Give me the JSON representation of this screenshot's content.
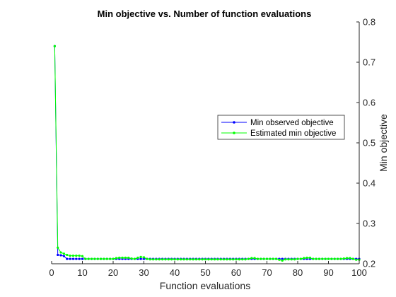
{
  "chart_data": {
    "type": "line",
    "title": "Min objective vs. Number of function evaluations",
    "xlabel": "Function evaluations",
    "ylabel": "Min objective",
    "xlim": [
      0,
      100
    ],
    "ylim": [
      0.2,
      0.8
    ],
    "xticks": [
      "0",
      "10",
      "20",
      "30",
      "40",
      "50",
      "60",
      "70",
      "80",
      "90",
      "100"
    ],
    "yticks": [
      "0.2",
      "0.3",
      "0.4",
      "0.5",
      "0.6",
      "0.7",
      "0.8"
    ],
    "y_axis_position": "right",
    "grid": false,
    "legend_position": "right",
    "series": [
      {
        "name": "Min observed objective",
        "color": "#0000ff",
        "marker": "dot",
        "x": [
          1,
          2,
          3,
          4,
          5,
          100
        ],
        "y": [
          0.74,
          0.222,
          0.221,
          0.219,
          0.212,
          0.212
        ]
      },
      {
        "name": "Estimated min objective",
        "color": "#00ff00",
        "marker": "dot",
        "x": [
          1,
          2,
          3,
          4,
          5,
          6,
          7,
          8,
          9,
          10,
          11,
          20,
          21,
          22,
          23,
          24,
          25,
          26,
          27,
          28,
          29,
          30,
          31,
          32,
          33,
          34,
          60,
          64,
          65,
          66,
          67,
          70,
          73,
          74,
          75,
          76,
          80,
          81,
          82,
          83,
          84,
          85,
          90,
          94,
          95,
          96,
          97,
          98,
          99,
          100
        ],
        "y": [
          0.74,
          0.24,
          0.228,
          0.225,
          0.222,
          0.22,
          0.22,
          0.22,
          0.22,
          0.219,
          0.212,
          0.212,
          0.214,
          0.215,
          0.215,
          0.215,
          0.215,
          0.213,
          0.212,
          0.215,
          0.217,
          0.216,
          0.212,
          0.211,
          0.211,
          0.211,
          0.211,
          0.212,
          0.214,
          0.214,
          0.212,
          0.212,
          0.212,
          0.21,
          0.208,
          0.211,
          0.212,
          0.212,
          0.214,
          0.215,
          0.215,
          0.212,
          0.212,
          0.212,
          0.213,
          0.214,
          0.214,
          0.212,
          0.21,
          0.21
        ]
      }
    ]
  }
}
